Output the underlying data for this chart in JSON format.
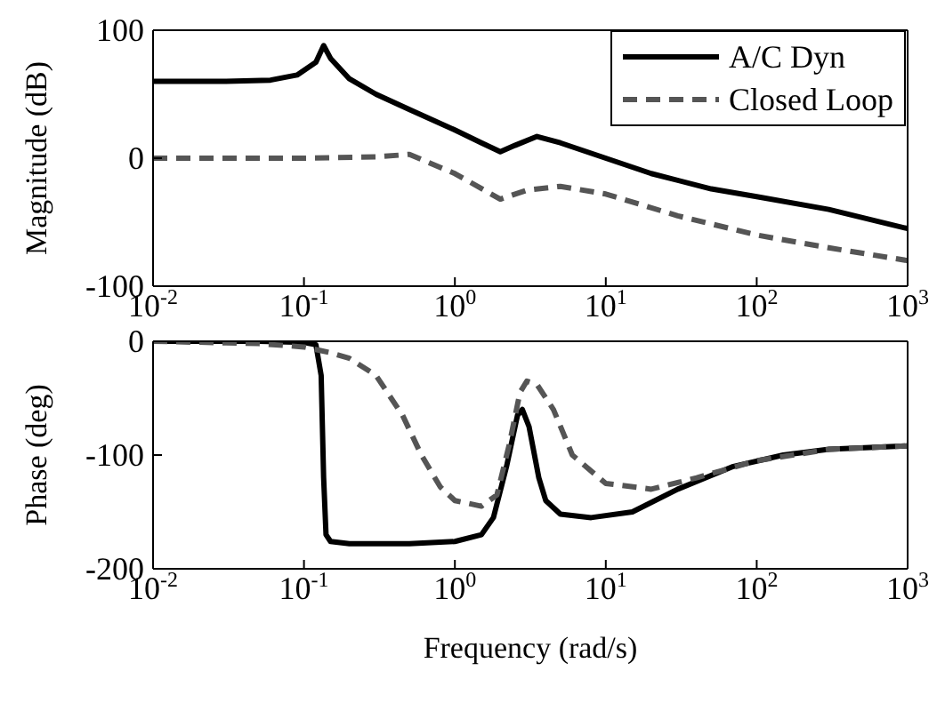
{
  "chart_data": [
    {
      "type": "line",
      "ylabel": "Magnitude (dB)",
      "log": "x",
      "legend": "top right",
      "xlim": [
        0.01,
        1000
      ],
      "ylim": [
        -100,
        100
      ],
      "yticks": [
        -100,
        0,
        100
      ],
      "xticks": [
        {
          "value": 0.01,
          "label": "10$^{-2}$"
        },
        {
          "value": 0.1,
          "label": "10$^{-1}$"
        },
        {
          "value": 1,
          "label": "10$^{0}$"
        },
        {
          "value": 10,
          "label": "10$^{1}$"
        },
        {
          "value": 100,
          "label": "10$^{2}$"
        },
        {
          "value": 1000,
          "label": "10$^{3}$"
        }
      ],
      "series": [
        {
          "name": "A/C Dyn",
          "color": "#000000",
          "line_style": "solid",
          "x": [
            0.01,
            0.03,
            0.06,
            0.09,
            0.12,
            0.135,
            0.15,
            0.2,
            0.3,
            0.5,
            1,
            1.5,
            2,
            2.5,
            3.5,
            5,
            10,
            20,
            50,
            100,
            300,
            1000
          ],
          "values": [
            60,
            60,
            61,
            65,
            75,
            88,
            78,
            62,
            50,
            38,
            22,
            12,
            5,
            10,
            17,
            12,
            0,
            -12,
            -24,
            -30,
            -40,
            -55
          ]
        },
        {
          "name": "Closed Loop",
          "color": "#555555",
          "line_style": "dashed",
          "x": [
            0.01,
            0.1,
            0.3,
            0.5,
            1,
            2,
            3,
            5,
            10,
            30,
            100,
            300,
            1000
          ],
          "values": [
            0,
            0,
            1,
            3,
            -12,
            -32,
            -25,
            -22,
            -28,
            -45,
            -60,
            -70,
            -80
          ]
        }
      ]
    },
    {
      "type": "line",
      "xlabel": "Frequency (rad/s)",
      "ylabel": "Phase (deg)",
      "log": "x",
      "xlim": [
        0.01,
        1000
      ],
      "ylim": [
        -200,
        0
      ],
      "yticks": [
        -200,
        -100,
        0
      ],
      "xticks": [
        {
          "value": 0.01,
          "label": "10$^{-2}$"
        },
        {
          "value": 0.1,
          "label": "10$^{-1}$"
        },
        {
          "value": 1,
          "label": "10$^{0}$"
        },
        {
          "value": 10,
          "label": "10$^{1}$"
        },
        {
          "value": 100,
          "label": "10$^{2}$"
        },
        {
          "value": 1000,
          "label": "10$^{3}$"
        }
      ],
      "series": [
        {
          "color": "#000000",
          "line_style": "solid",
          "x": [
            0.01,
            0.05,
            0.1,
            0.12,
            0.13,
            0.135,
            0.14,
            0.15,
            0.2,
            0.5,
            1,
            1.5,
            1.8,
            2.2,
            2.6,
            2.8,
            3.1,
            3.6,
            4,
            5,
            8,
            15,
            30,
            70,
            150,
            300,
            1000
          ],
          "values": [
            0,
            0,
            -1,
            -3,
            -30,
            -120,
            -170,
            -176,
            -178,
            -178,
            -176,
            -170,
            -155,
            -110,
            -65,
            -60,
            -75,
            -120,
            -140,
            -152,
            -155,
            -150,
            -130,
            -110,
            -100,
            -95,
            -92
          ]
        },
        {
          "color": "#555555",
          "line_style": "dashed",
          "x": [
            0.01,
            0.05,
            0.1,
            0.15,
            0.2,
            0.3,
            0.45,
            0.6,
            0.8,
            1,
            1.5,
            1.9,
            2.3,
            2.7,
            3,
            3.5,
            4.5,
            6,
            10,
            20,
            40,
            100,
            300,
            1000
          ],
          "values": [
            0,
            -2,
            -5,
            -10,
            -15,
            -30,
            -65,
            -100,
            -128,
            -140,
            -145,
            -135,
            -90,
            -45,
            -35,
            -38,
            -60,
            -100,
            -125,
            -130,
            -120,
            -105,
            -95,
            -92
          ]
        }
      ]
    }
  ]
}
